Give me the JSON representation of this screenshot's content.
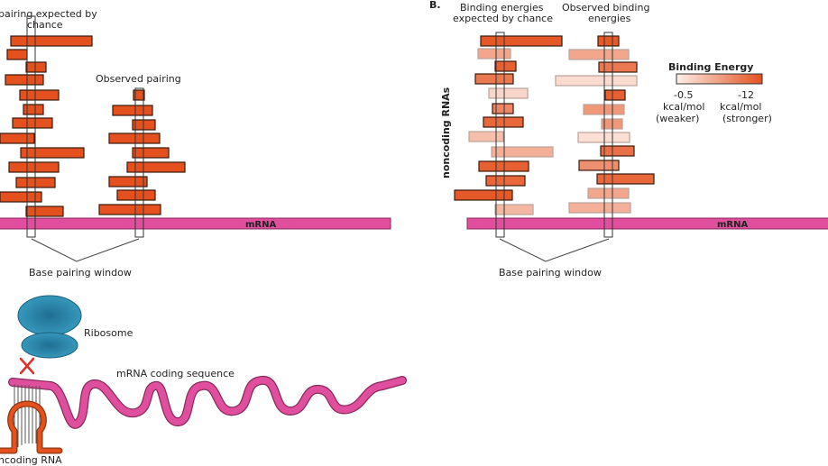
{
  "panel_a": {
    "title_line1": "pairing expected by",
    "title_line2": "chance",
    "observed_label": "Observed pairing",
    "mrna_label": "mRNA",
    "window_label": "Base pairing window",
    "bar_color": "#e4501e"
  },
  "panel_b": {
    "panel_letter": "B.",
    "expected_line1": "Binding energies",
    "expected_line2": "expected by chance",
    "observed_line1": "Observed binding",
    "observed_line2": "energies",
    "y_axis_label": "noncoding RNAs",
    "mrna_label": "mRNA",
    "window_label": "Base pairing window",
    "legend": {
      "title": "Binding Energy",
      "low_value": "-0.5",
      "low_unit": "kcal/mol",
      "low_desc": "(weaker)",
      "high_value": "-12",
      "high_unit": "kcal/mol",
      "high_desc": "(stronger)",
      "low_color": "#fdeee8",
      "high_color": "#e4501e"
    }
  },
  "panel_c": {
    "ribosome_label": "Ribosome",
    "coding_label": "mRNA coding sequence",
    "noncoding_label": "ncoding RNA",
    "mrna_color": "#e0509a",
    "ribosome_color": "#2e8fb3",
    "block_mark_color": "#e0302a"
  }
}
